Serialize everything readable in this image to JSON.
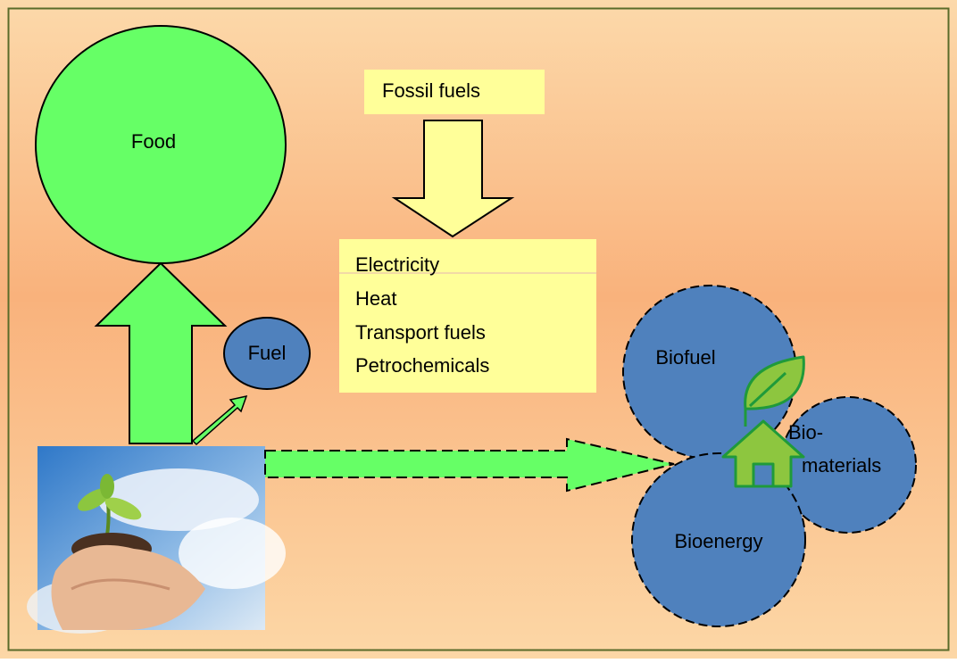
{
  "nodes": {
    "food": {
      "label": "Food"
    },
    "fossil_fuels": {
      "label": "Fossil fuels"
    },
    "products": {
      "lines": [
        "Electricity",
        "Heat",
        "Transport fuels",
        "Petrochemicals"
      ]
    },
    "fuel": {
      "label": "Fuel"
    },
    "biofuel": {
      "label": "Biofuel"
    },
    "biomaterials": {
      "lines": [
        "Bio-",
        "materials"
      ]
    },
    "bioenergy": {
      "label": "Bioenergy"
    }
  }
}
